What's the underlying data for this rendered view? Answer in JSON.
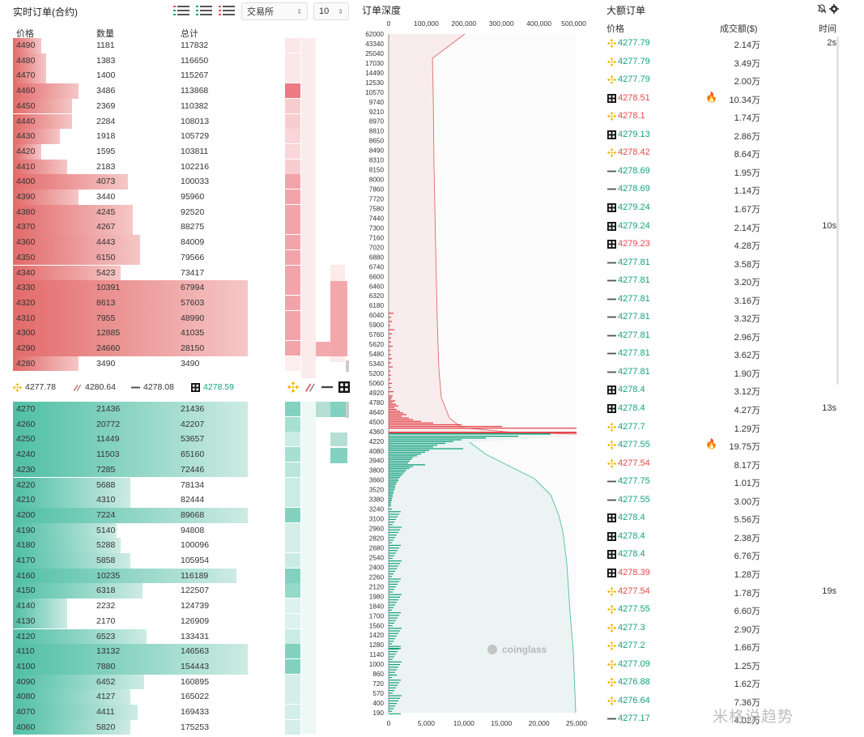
{
  "left": {
    "title": "实时订单(合约)",
    "exchange_select": "交易所",
    "depth_select": "10",
    "headers": {
      "price": "价格",
      "qty": "数量",
      "total": "总计"
    },
    "asks": [
      {
        "price": "4490",
        "qty": "1181",
        "total": "117832",
        "w": 0.12,
        "ex": 0.15
      },
      {
        "price": "4480",
        "qty": "1383",
        "total": "116650",
        "w": 0.14,
        "ex": 0.15
      },
      {
        "price": "4470",
        "qty": "1400",
        "total": "115267",
        "w": 0.14,
        "ex": 0.15
      },
      {
        "price": "4460",
        "qty": "3486",
        "total": "113868",
        "w": 0.28,
        "ex": 0.8
      },
      {
        "price": "4450",
        "qty": "2369",
        "total": "110382",
        "w": 0.25,
        "ex": 0.3
      },
      {
        "price": "4440",
        "qty": "2284",
        "total": "108013",
        "w": 0.25,
        "ex": 0.3
      },
      {
        "price": "4430",
        "qty": "1918",
        "total": "105729",
        "w": 0.2,
        "ex": 0.25
      },
      {
        "price": "4420",
        "qty": "1595",
        "total": "103811",
        "w": 0.12,
        "ex": 0.25
      },
      {
        "price": "4410",
        "qty": "2183",
        "total": "102216",
        "w": 0.23,
        "ex": 0.3
      },
      {
        "price": "4400",
        "qty": "4073",
        "total": "100033",
        "w": 0.49,
        "ex": 0.55
      },
      {
        "price": "4390",
        "qty": "3440",
        "total": "95960",
        "w": 0.28,
        "ex": 0.55
      },
      {
        "price": "4380",
        "qty": "4245",
        "total": "92520",
        "w": 0.51,
        "ex": 0.55
      },
      {
        "price": "4370",
        "qty": "4267",
        "total": "88275",
        "w": 0.51,
        "ex": 0.55
      },
      {
        "price": "4360",
        "qty": "4443",
        "total": "84009",
        "w": 0.54,
        "ex": 0.55
      },
      {
        "price": "4350",
        "qty": "6150",
        "total": "79566",
        "w": 0.54,
        "ex": 0.55
      },
      {
        "price": "4340",
        "qty": "5423",
        "total": "73417",
        "w": 0.46,
        "ex": 0.55
      },
      {
        "price": "4330",
        "qty": "10391",
        "total": "67994",
        "w": 1.0,
        "ex": 0.55
      },
      {
        "price": "4320",
        "qty": "8613",
        "total": "57603",
        "w": 1.0,
        "ex": 0.55
      },
      {
        "price": "4310",
        "qty": "7955",
        "total": "48990",
        "w": 1.0,
        "ex": 0.55
      },
      {
        "price": "4300",
        "qty": "12885",
        "total": "41035",
        "w": 1.0,
        "ex": 0.55
      },
      {
        "price": "4290",
        "qty": "24660",
        "total": "28150",
        "w": 1.0,
        "ex": 0.55
      },
      {
        "price": "4280",
        "qty": "3490",
        "total": "3490",
        "w": 0.28,
        "ex": 0.1
      }
    ],
    "summary": [
      {
        "icon": "binance-icon",
        "value": "4277.78",
        "cls": ""
      },
      {
        "icon": "bybit-icon",
        "value": "4280.64",
        "cls": ""
      },
      {
        "icon": "bitget-icon",
        "value": "4278.08",
        "cls": ""
      },
      {
        "icon": "okx-icon",
        "value": "4278.59",
        "cls": "up"
      }
    ],
    "bids": [
      {
        "price": "4270",
        "qty": "21436",
        "total": "21436",
        "w": 1.0,
        "ex": 0.7
      },
      {
        "price": "4260",
        "qty": "20772",
        "total": "42207",
        "w": 1.0,
        "ex": 0.5
      },
      {
        "price": "4250",
        "qty": "11449",
        "total": "53657",
        "w": 1.0,
        "ex": 0.3
      },
      {
        "price": "4240",
        "qty": "11503",
        "total": "65160",
        "w": 1.0,
        "ex": 0.5
      },
      {
        "price": "4230",
        "qty": "7285",
        "total": "72446",
        "w": 1.0,
        "ex": 0.4
      },
      {
        "price": "4220",
        "qty": "5688",
        "total": "78134",
        "w": 0.5,
        "ex": 0.3
      },
      {
        "price": "4210",
        "qty": "4310",
        "total": "82444",
        "w": 0.5,
        "ex": 0.3
      },
      {
        "price": "4200",
        "qty": "7224",
        "total": "89668",
        "w": 1.0,
        "ex": 0.7
      },
      {
        "price": "4190",
        "qty": "5140",
        "total": "94808",
        "w": 0.44,
        "ex": 0.25
      },
      {
        "price": "4180",
        "qty": "5288",
        "total": "100096",
        "w": 0.46,
        "ex": 0.25
      },
      {
        "price": "4170",
        "qty": "5858",
        "total": "105954",
        "w": 0.5,
        "ex": 0.3
      },
      {
        "price": "4160",
        "qty": "10235",
        "total": "116189",
        "w": 0.95,
        "ex": 0.7
      },
      {
        "price": "4150",
        "qty": "6318",
        "total": "122507",
        "w": 0.55,
        "ex": 0.6
      },
      {
        "price": "4140",
        "qty": "2232",
        "total": "124739",
        "w": 0.23,
        "ex": 0.2
      },
      {
        "price": "4130",
        "qty": "2170",
        "total": "126909",
        "w": 0.23,
        "ex": 0.2
      },
      {
        "price": "4120",
        "qty": "6523",
        "total": "133431",
        "w": 0.57,
        "ex": 0.3
      },
      {
        "price": "4110",
        "qty": "13132",
        "total": "146563",
        "w": 1.0,
        "ex": 0.7
      },
      {
        "price": "4100",
        "qty": "7880",
        "total": "154443",
        "w": 1.0,
        "ex": 0.7
      },
      {
        "price": "4090",
        "qty": "6452",
        "total": "160895",
        "w": 0.56,
        "ex": 0.25
      },
      {
        "price": "4080",
        "qty": "4127",
        "total": "165022",
        "w": 0.5,
        "ex": 0.25
      },
      {
        "price": "4070",
        "qty": "4411",
        "total": "169433",
        "w": 0.53,
        "ex": 0.25
      },
      {
        "price": "4060",
        "qty": "5820",
        "total": "175253",
        "w": 0.5,
        "ex": 0.25
      }
    ]
  },
  "depth": {
    "title": "订单深度",
    "top_ticks": [
      "0",
      "100,000",
      "200,000",
      "300,000",
      "400,000",
      "500,000"
    ],
    "bottom_ticks": [
      "0",
      "5,000",
      "10,000",
      "15,000",
      "20,000",
      "25,000"
    ],
    "y_ticks": [
      "62000",
      "43340",
      "25040",
      "17030",
      "14490",
      "12530",
      "10570",
      "9740",
      "9210",
      "8970",
      "8810",
      "8650",
      "8490",
      "8310",
      "8150",
      "8000",
      "7860",
      "7720",
      "7580",
      "7440",
      "7300",
      "7160",
      "7020",
      "6880",
      "6740",
      "6600",
      "6460",
      "6320",
      "6180",
      "6040",
      "5900",
      "5760",
      "5620",
      "5480",
      "5340",
      "5200",
      "5060",
      "4920",
      "4780",
      "4640",
      "4500",
      "4360",
      "4220",
      "4080",
      "3940",
      "3800",
      "3660",
      "3520",
      "3380",
      "3240",
      "3100",
      "2960",
      "2820",
      "2680",
      "2540",
      "2400",
      "2260",
      "2120",
      "1980",
      "1840",
      "1700",
      "1560",
      "1420",
      "1280",
      "1140",
      "1000",
      "860",
      "720",
      "570",
      "400",
      "190"
    ],
    "watermark": "coinglass"
  },
  "right": {
    "title": "大额订单",
    "headers": {
      "price": "价格",
      "amount": "成交额($)",
      "time": "时间"
    },
    "rows": [
      {
        "ex": "binance",
        "price": "4277.79",
        "dir": "up",
        "amt": "2.14万",
        "time": "2s",
        "fire": false
      },
      {
        "ex": "binance",
        "price": "4277.79",
        "dir": "up",
        "amt": "3.49万",
        "time": "",
        "fire": false
      },
      {
        "ex": "binance",
        "price": "4277.79",
        "dir": "up",
        "amt": "2.00万",
        "time": "",
        "fire": false
      },
      {
        "ex": "okx",
        "price": "4278.51",
        "dir": "dn",
        "amt": "10.34万",
        "time": "",
        "fire": true
      },
      {
        "ex": "binance",
        "price": "4278.1",
        "dir": "dn",
        "amt": "1.74万",
        "time": "",
        "fire": false
      },
      {
        "ex": "okx",
        "price": "4279.13",
        "dir": "up",
        "amt": "2.86万",
        "time": "",
        "fire": false
      },
      {
        "ex": "binance",
        "price": "4278.42",
        "dir": "dn",
        "amt": "8.64万",
        "time": "",
        "fire": false
      },
      {
        "ex": "bitget",
        "price": "4278.69",
        "dir": "up",
        "amt": "1.95万",
        "time": "",
        "fire": false
      },
      {
        "ex": "bitget",
        "price": "4278.69",
        "dir": "up",
        "amt": "1.14万",
        "time": "",
        "fire": false
      },
      {
        "ex": "okx",
        "price": "4279.24",
        "dir": "up",
        "amt": "1.67万",
        "time": "",
        "fire": false
      },
      {
        "ex": "okx",
        "price": "4279.24",
        "dir": "up",
        "amt": "2.14万",
        "time": "10s",
        "fire": false
      },
      {
        "ex": "okx",
        "price": "4279.23",
        "dir": "dn",
        "amt": "4.28万",
        "time": "",
        "fire": false
      },
      {
        "ex": "bitget",
        "price": "4277.81",
        "dir": "up",
        "amt": "3.58万",
        "time": "",
        "fire": false
      },
      {
        "ex": "bitget",
        "price": "4277.81",
        "dir": "up",
        "amt": "3.20万",
        "time": "",
        "fire": false
      },
      {
        "ex": "bitget",
        "price": "4277.81",
        "dir": "up",
        "amt": "3.16万",
        "time": "",
        "fire": false
      },
      {
        "ex": "bitget",
        "price": "4277.81",
        "dir": "up",
        "amt": "3.32万",
        "time": "",
        "fire": false
      },
      {
        "ex": "bitget",
        "price": "4277.81",
        "dir": "up",
        "amt": "2.96万",
        "time": "",
        "fire": false
      },
      {
        "ex": "bitget",
        "price": "4277.81",
        "dir": "up",
        "amt": "3.62万",
        "time": "",
        "fire": false
      },
      {
        "ex": "bitget",
        "price": "4277.81",
        "dir": "up",
        "amt": "1.90万",
        "time": "",
        "fire": false
      },
      {
        "ex": "okx",
        "price": "4278.4",
        "dir": "up",
        "amt": "3.12万",
        "time": "",
        "fire": false
      },
      {
        "ex": "okx",
        "price": "4278.4",
        "dir": "up",
        "amt": "4.27万",
        "time": "13s",
        "fire": false
      },
      {
        "ex": "binance",
        "price": "4277.7",
        "dir": "up",
        "amt": "1.29万",
        "time": "",
        "fire": false
      },
      {
        "ex": "binance",
        "price": "4277.55",
        "dir": "up",
        "amt": "19.75万",
        "time": "",
        "fire": true
      },
      {
        "ex": "binance",
        "price": "4277.54",
        "dir": "dn",
        "amt": "8.17万",
        "time": "",
        "fire": false
      },
      {
        "ex": "bitget",
        "price": "4277.75",
        "dir": "up",
        "amt": "1.01万",
        "time": "",
        "fire": false
      },
      {
        "ex": "bitget",
        "price": "4277.55",
        "dir": "up",
        "amt": "3.00万",
        "time": "",
        "fire": false
      },
      {
        "ex": "okx",
        "price": "4278.4",
        "dir": "up",
        "amt": "5.56万",
        "time": "",
        "fire": false
      },
      {
        "ex": "okx",
        "price": "4278.4",
        "dir": "up",
        "amt": "2.38万",
        "time": "",
        "fire": false
      },
      {
        "ex": "okx",
        "price": "4278.4",
        "dir": "up",
        "amt": "6.76万",
        "time": "",
        "fire": false
      },
      {
        "ex": "okx",
        "price": "4278.39",
        "dir": "dn",
        "amt": "1.28万",
        "time": "",
        "fire": false
      },
      {
        "ex": "binance",
        "price": "4277.54",
        "dir": "dn",
        "amt": "1.78万",
        "time": "19s",
        "fire": false
      },
      {
        "ex": "binance",
        "price": "4277.55",
        "dir": "up",
        "amt": "6.60万",
        "time": "",
        "fire": false
      },
      {
        "ex": "binance",
        "price": "4277.3",
        "dir": "up",
        "amt": "2.90万",
        "time": "",
        "fire": false
      },
      {
        "ex": "binance",
        "price": "4277.2",
        "dir": "up",
        "amt": "1.66万",
        "time": "",
        "fire": false
      },
      {
        "ex": "binance",
        "price": "4277.09",
        "dir": "up",
        "amt": "1.25万",
        "time": "",
        "fire": false
      },
      {
        "ex": "binance",
        "price": "4276.88",
        "dir": "up",
        "amt": "1.62万",
        "time": "",
        "fire": false
      },
      {
        "ex": "binance",
        "price": "4276.64",
        "dir": "up",
        "amt": "7.36万",
        "time": "",
        "fire": false
      },
      {
        "ex": "bitget",
        "price": "4277.17",
        "dir": "up",
        "amt": "4.02万",
        "time": "",
        "fire": false
      }
    ]
  },
  "watermark": "米格说趋势",
  "colors": {
    "ask": "#e36a6a",
    "ask_light": "#f5c7c7",
    "bid": "#4fbfa5",
    "bid_light": "#cdebe3",
    "up": "#14a37f",
    "down": "#e5484d"
  }
}
